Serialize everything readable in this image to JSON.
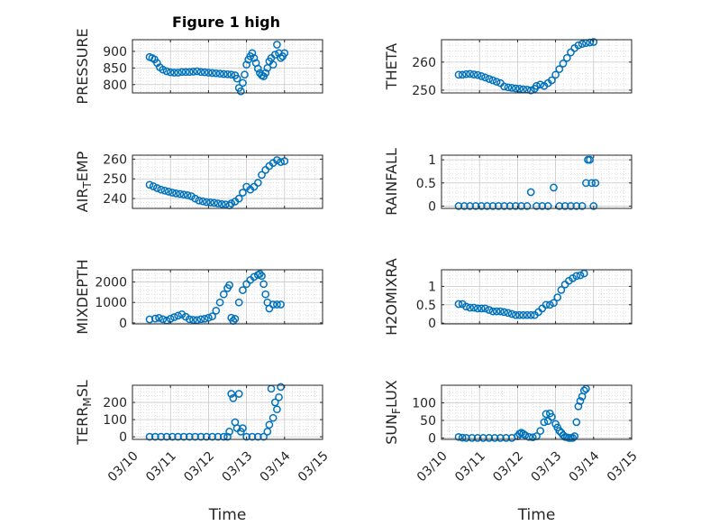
{
  "figure": {
    "title": "Figure 1 high"
  },
  "x_axis": {
    "label": "Time",
    "tick_labels": [
      "03/10",
      "03/11",
      "03/12",
      "03/13",
      "03/14",
      "03/15"
    ],
    "range": [
      0,
      5
    ]
  },
  "marker_color": "#0072BD",
  "chart_data": [
    {
      "type": "scatter",
      "ylabel_parts": [
        "PRESSURE"
      ],
      "ylim": [
        775,
        935
      ],
      "yticks": [
        800,
        850,
        900
      ],
      "grid": true,
      "series_points": [
        [
          0.45,
          883
        ],
        [
          0.52,
          880
        ],
        [
          0.58,
          876
        ],
        [
          0.65,
          865
        ],
        [
          0.72,
          852
        ],
        [
          0.8,
          845
        ],
        [
          0.9,
          840
        ],
        [
          1.0,
          837
        ],
        [
          1.1,
          836
        ],
        [
          1.2,
          836
        ],
        [
          1.3,
          838
        ],
        [
          1.4,
          838
        ],
        [
          1.5,
          838
        ],
        [
          1.6,
          839
        ],
        [
          1.7,
          840
        ],
        [
          1.8,
          838
        ],
        [
          1.9,
          837
        ],
        [
          2.0,
          836
        ],
        [
          2.1,
          835
        ],
        [
          2.2,
          834
        ],
        [
          2.3,
          833
        ],
        [
          2.4,
          832
        ],
        [
          2.5,
          831
        ],
        [
          2.6,
          830
        ],
        [
          2.7,
          828
        ],
        [
          2.75,
          818
        ],
        [
          2.8,
          790
        ],
        [
          2.85,
          780
        ],
        [
          2.9,
          805
        ],
        [
          2.95,
          830
        ],
        [
          3.0,
          860
        ],
        [
          3.05,
          875
        ],
        [
          3.1,
          885
        ],
        [
          3.15,
          895
        ],
        [
          3.2,
          880
        ],
        [
          3.25,
          865
        ],
        [
          3.3,
          848
        ],
        [
          3.35,
          835
        ],
        [
          3.4,
          828
        ],
        [
          3.45,
          825
        ],
        [
          3.5,
          835
        ],
        [
          3.55,
          850
        ],
        [
          3.6,
          870
        ],
        [
          3.65,
          880
        ],
        [
          3.7,
          860
        ],
        [
          3.75,
          890
        ],
        [
          3.8,
          920
        ],
        [
          3.85,
          895
        ],
        [
          3.9,
          880
        ],
        [
          3.95,
          885
        ],
        [
          4.0,
          895
        ]
      ]
    },
    {
      "type": "scatter",
      "ylabel_parts": [
        "THETA"
      ],
      "ylim": [
        249,
        268
      ],
      "yticks": [
        250,
        260
      ],
      "grid": true,
      "series_points": [
        [
          0.45,
          255.5
        ],
        [
          0.55,
          255.5
        ],
        [
          0.65,
          255.7
        ],
        [
          0.75,
          255.8
        ],
        [
          0.85,
          255.6
        ],
        [
          0.95,
          255.4
        ],
        [
          1.05,
          255.0
        ],
        [
          1.15,
          254.5
        ],
        [
          1.25,
          254.0
        ],
        [
          1.35,
          253.5
        ],
        [
          1.45,
          253.0
        ],
        [
          1.55,
          252.5
        ],
        [
          1.65,
          251.3
        ],
        [
          1.75,
          251.0
        ],
        [
          1.85,
          250.8
        ],
        [
          1.95,
          250.6
        ],
        [
          2.05,
          250.5
        ],
        [
          2.15,
          250.3
        ],
        [
          2.25,
          250.2
        ],
        [
          2.35,
          249.9
        ],
        [
          2.45,
          250.5
        ],
        [
          2.5,
          251.5
        ],
        [
          2.6,
          252.0
        ],
        [
          2.7,
          251.5
        ],
        [
          2.8,
          252.5
        ],
        [
          2.9,
          253.5
        ],
        [
          3.0,
          255.5
        ],
        [
          3.1,
          257.5
        ],
        [
          3.2,
          259.5
        ],
        [
          3.3,
          261.5
        ],
        [
          3.4,
          263.5
        ],
        [
          3.5,
          265.0
        ],
        [
          3.6,
          266.0
        ],
        [
          3.7,
          266.5
        ],
        [
          3.8,
          266.8
        ],
        [
          3.9,
          267.0
        ],
        [
          4.0,
          267.2
        ]
      ]
    },
    {
      "type": "scatter",
      "ylabel_parts": [
        "AIR",
        "T",
        "EMP"
      ],
      "ylim": [
        235,
        262
      ],
      "yticks": [
        240,
        250,
        260
      ],
      "grid": true,
      "series_points": [
        [
          0.45,
          247
        ],
        [
          0.55,
          246.2
        ],
        [
          0.65,
          245.3
        ],
        [
          0.75,
          244.5
        ],
        [
          0.85,
          244.0
        ],
        [
          0.95,
          243.5
        ],
        [
          1.05,
          243.0
        ],
        [
          1.15,
          242.6
        ],
        [
          1.25,
          242.3
        ],
        [
          1.35,
          242.0
        ],
        [
          1.45,
          241.7
        ],
        [
          1.55,
          241.2
        ],
        [
          1.65,
          240.0
        ],
        [
          1.75,
          239.0
        ],
        [
          1.85,
          238.6
        ],
        [
          1.95,
          238.2
        ],
        [
          2.05,
          238.0
        ],
        [
          2.15,
          237.8
        ],
        [
          2.25,
          237.5
        ],
        [
          2.35,
          237.2
        ],
        [
          2.45,
          237.0
        ],
        [
          2.55,
          236.5
        ],
        [
          2.6,
          237.5
        ],
        [
          2.7,
          238.5
        ],
        [
          2.8,
          240.0
        ],
        [
          2.9,
          243.0
        ],
        [
          3.0,
          246.0
        ],
        [
          3.1,
          244.5
        ],
        [
          3.2,
          246.0
        ],
        [
          3.3,
          248.0
        ],
        [
          3.4,
          252.0
        ],
        [
          3.5,
          254.5
        ],
        [
          3.6,
          256.5
        ],
        [
          3.7,
          258.0
        ],
        [
          3.8,
          259.5
        ],
        [
          3.9,
          258.5
        ],
        [
          4.0,
          259.0
        ]
      ]
    },
    {
      "type": "scatter",
      "ylabel_parts": [
        "RAINFALL"
      ],
      "ylim": [
        -0.05,
        1.1
      ],
      "yticks": [
        0,
        0.5,
        1
      ],
      "ytick_labels": [
        "0",
        "0.5",
        "1"
      ],
      "grid": true,
      "series_points": [
        [
          0.45,
          0
        ],
        [
          0.6,
          0
        ],
        [
          0.75,
          0
        ],
        [
          0.9,
          0
        ],
        [
          1.05,
          0
        ],
        [
          1.2,
          0
        ],
        [
          1.35,
          0
        ],
        [
          1.5,
          0
        ],
        [
          1.65,
          0
        ],
        [
          1.8,
          0
        ],
        [
          1.95,
          0
        ],
        [
          2.1,
          0
        ],
        [
          2.25,
          0
        ],
        [
          2.35,
          0.3
        ],
        [
          2.5,
          0
        ],
        [
          2.65,
          0
        ],
        [
          2.8,
          0
        ],
        [
          2.95,
          0.4
        ],
        [
          3.1,
          0
        ],
        [
          3.25,
          0
        ],
        [
          3.4,
          0
        ],
        [
          3.55,
          0
        ],
        [
          3.7,
          0
        ],
        [
          3.8,
          0.5
        ],
        [
          3.85,
          1.0
        ],
        [
          3.9,
          1.0
        ],
        [
          3.95,
          0.5
        ],
        [
          4.0,
          0
        ],
        [
          4.05,
          0.5
        ]
      ]
    },
    {
      "type": "scatter",
      "ylabel_parts": [
        "MIXDEPTH"
      ],
      "ylim": [
        -50,
        2600
      ],
      "yticks": [
        0,
        1000,
        2000
      ],
      "grid": true,
      "series_points": [
        [
          0.45,
          170
        ],
        [
          0.6,
          210
        ],
        [
          0.7,
          240
        ],
        [
          0.8,
          180
        ],
        [
          0.9,
          120
        ],
        [
          1.0,
          200
        ],
        [
          1.1,
          280
        ],
        [
          1.2,
          350
        ],
        [
          1.3,
          420
        ],
        [
          1.4,
          300
        ],
        [
          1.5,
          180
        ],
        [
          1.6,
          150
        ],
        [
          1.7,
          140
        ],
        [
          1.8,
          180
        ],
        [
          1.9,
          200
        ],
        [
          2.0,
          250
        ],
        [
          2.1,
          320
        ],
        [
          2.2,
          600
        ],
        [
          2.3,
          1000
        ],
        [
          2.4,
          1400
        ],
        [
          2.5,
          1700
        ],
        [
          2.55,
          1850
        ],
        [
          2.6,
          250
        ],
        [
          2.65,
          100
        ],
        [
          2.7,
          200
        ],
        [
          2.8,
          1000
        ],
        [
          2.9,
          1600
        ],
        [
          3.0,
          1900
        ],
        [
          3.1,
          2100
        ],
        [
          3.2,
          2250
        ],
        [
          3.3,
          2350
        ],
        [
          3.35,
          2400
        ],
        [
          3.4,
          2300
        ],
        [
          3.45,
          1900
        ],
        [
          3.5,
          1400
        ],
        [
          3.55,
          1000
        ],
        [
          3.6,
          700
        ],
        [
          3.7,
          900
        ],
        [
          3.8,
          900
        ],
        [
          3.9,
          900
        ]
      ]
    },
    {
      "type": "scatter",
      "ylabel_parts": [
        "H2OMIXRA"
      ],
      "ylim": [
        -0.02,
        1.45
      ],
      "yticks": [
        0,
        0.5,
        1
      ],
      "ytick_labels": [
        "0",
        "0.5",
        "1"
      ],
      "grid": true,
      "series_points": [
        [
          0.45,
          0.52
        ],
        [
          0.55,
          0.52
        ],
        [
          0.65,
          0.45
        ],
        [
          0.75,
          0.42
        ],
        [
          0.85,
          0.42
        ],
        [
          0.95,
          0.4
        ],
        [
          1.05,
          0.4
        ],
        [
          1.15,
          0.4
        ],
        [
          1.25,
          0.36
        ],
        [
          1.35,
          0.32
        ],
        [
          1.45,
          0.32
        ],
        [
          1.55,
          0.32
        ],
        [
          1.65,
          0.3
        ],
        [
          1.75,
          0.28
        ],
        [
          1.85,
          0.25
        ],
        [
          1.95,
          0.22
        ],
        [
          2.05,
          0.22
        ],
        [
          2.15,
          0.22
        ],
        [
          2.25,
          0.22
        ],
        [
          2.35,
          0.22
        ],
        [
          2.45,
          0.22
        ],
        [
          2.55,
          0.3
        ],
        [
          2.65,
          0.4
        ],
        [
          2.75,
          0.5
        ],
        [
          2.85,
          0.5
        ],
        [
          2.95,
          0.55
        ],
        [
          3.05,
          0.7
        ],
        [
          3.15,
          0.9
        ],
        [
          3.25,
          1.05
        ],
        [
          3.35,
          1.15
        ],
        [
          3.45,
          1.22
        ],
        [
          3.55,
          1.28
        ],
        [
          3.65,
          1.3
        ],
        [
          3.75,
          1.35
        ]
      ]
    },
    {
      "type": "scatter",
      "ylabel_parts": [
        "TERR",
        "M",
        "SL"
      ],
      "ylim": [
        -15,
        300
      ],
      "yticks": [
        0,
        100,
        200
      ],
      "grid": true,
      "series_points": [
        [
          0.45,
          0
        ],
        [
          0.6,
          0
        ],
        [
          0.75,
          0
        ],
        [
          0.9,
          0
        ],
        [
          1.05,
          0
        ],
        [
          1.2,
          0
        ],
        [
          1.35,
          0
        ],
        [
          1.5,
          0
        ],
        [
          1.65,
          0
        ],
        [
          1.8,
          0
        ],
        [
          1.95,
          0
        ],
        [
          2.1,
          0
        ],
        [
          2.25,
          0
        ],
        [
          2.4,
          0
        ],
        [
          2.5,
          0
        ],
        [
          2.55,
          30
        ],
        [
          2.6,
          250
        ],
        [
          2.65,
          225
        ],
        [
          2.7,
          85
        ],
        [
          2.75,
          50
        ],
        [
          2.8,
          250
        ],
        [
          2.85,
          30
        ],
        [
          2.9,
          50
        ],
        [
          3.0,
          0
        ],
        [
          3.15,
          0
        ],
        [
          3.3,
          0
        ],
        [
          3.45,
          0
        ],
        [
          3.55,
          30
        ],
        [
          3.6,
          70
        ],
        [
          3.65,
          280
        ],
        [
          3.7,
          110
        ],
        [
          3.75,
          200
        ],
        [
          3.8,
          160
        ],
        [
          3.85,
          230
        ],
        [
          3.9,
          290
        ]
      ]
    },
    {
      "type": "scatter",
      "ylabel_parts": [
        "SUN",
        "F",
        "LUX"
      ],
      "ylim": [
        -4,
        150
      ],
      "yticks": [
        0,
        50,
        100
      ],
      "grid": true,
      "series_points": [
        [
          0.45,
          3
        ],
        [
          0.55,
          1
        ],
        [
          0.65,
          0
        ],
        [
          0.8,
          0
        ],
        [
          0.95,
          0
        ],
        [
          1.1,
          0
        ],
        [
          1.25,
          0
        ],
        [
          1.4,
          0
        ],
        [
          1.55,
          0
        ],
        [
          1.7,
          0
        ],
        [
          1.85,
          0
        ],
        [
          2.0,
          5
        ],
        [
          2.05,
          12
        ],
        [
          2.1,
          15
        ],
        [
          2.15,
          12
        ],
        [
          2.2,
          8
        ],
        [
          2.3,
          3
        ],
        [
          2.4,
          2
        ],
        [
          2.5,
          5
        ],
        [
          2.6,
          20
        ],
        [
          2.7,
          45
        ],
        [
          2.75,
          68
        ],
        [
          2.8,
          48
        ],
        [
          2.85,
          70
        ],
        [
          2.9,
          60
        ],
        [
          3.0,
          40
        ],
        [
          3.05,
          30
        ],
        [
          3.1,
          20
        ],
        [
          3.15,
          15
        ],
        [
          3.2,
          8
        ],
        [
          3.25,
          3
        ],
        [
          3.3,
          2
        ],
        [
          3.35,
          0
        ],
        [
          3.4,
          0
        ],
        [
          3.45,
          0
        ],
        [
          3.5,
          5
        ],
        [
          3.55,
          45
        ],
        [
          3.6,
          90
        ],
        [
          3.65,
          105
        ],
        [
          3.7,
          118
        ],
        [
          3.75,
          135
        ],
        [
          3.8,
          140
        ]
      ]
    }
  ]
}
